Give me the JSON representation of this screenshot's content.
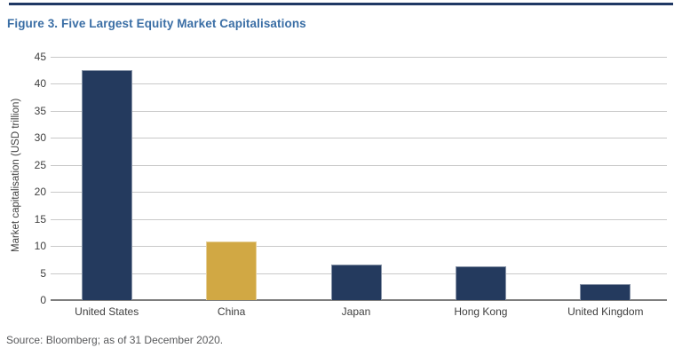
{
  "figure": {
    "title": "Figure 3. Five Largest Equity Market Capitalisations",
    "source": "Source: Bloomberg; as of 31 December 2020."
  },
  "chart_data": {
    "type": "bar",
    "title": "Figure 3. Five Largest Equity Market Capitalisations",
    "categories": [
      "United States",
      "China",
      "Japan",
      "Hong Kong",
      "United Kingdom"
    ],
    "values": [
      42.5,
      10.9,
      6.6,
      6.3,
      3.0
    ],
    "xlabel": "",
    "ylabel": "Market capitalisation (USD trillion)",
    "ylim": [
      0,
      45
    ],
    "yticks": [
      0,
      5,
      10,
      15,
      20,
      25,
      30,
      35,
      40,
      45
    ],
    "grid": true,
    "legend_position": "none",
    "bar_colors": [
      "#243A5E",
      "#D1A844",
      "#243A5E",
      "#243A5E",
      "#243A5E"
    ],
    "source": "Source: Bloomberg; as of 31 December 2020."
  },
  "colors": {
    "navy_bar": "#243A5E",
    "gold_bar": "#D1A844",
    "title_blue": "#3A6EA5",
    "top_rule_navy": "#1F3864",
    "gridline_gray": "#C9C9C9",
    "axis_gray": "#7F7F7F",
    "label_gray": "#404040",
    "source_gray": "#58595B"
  }
}
